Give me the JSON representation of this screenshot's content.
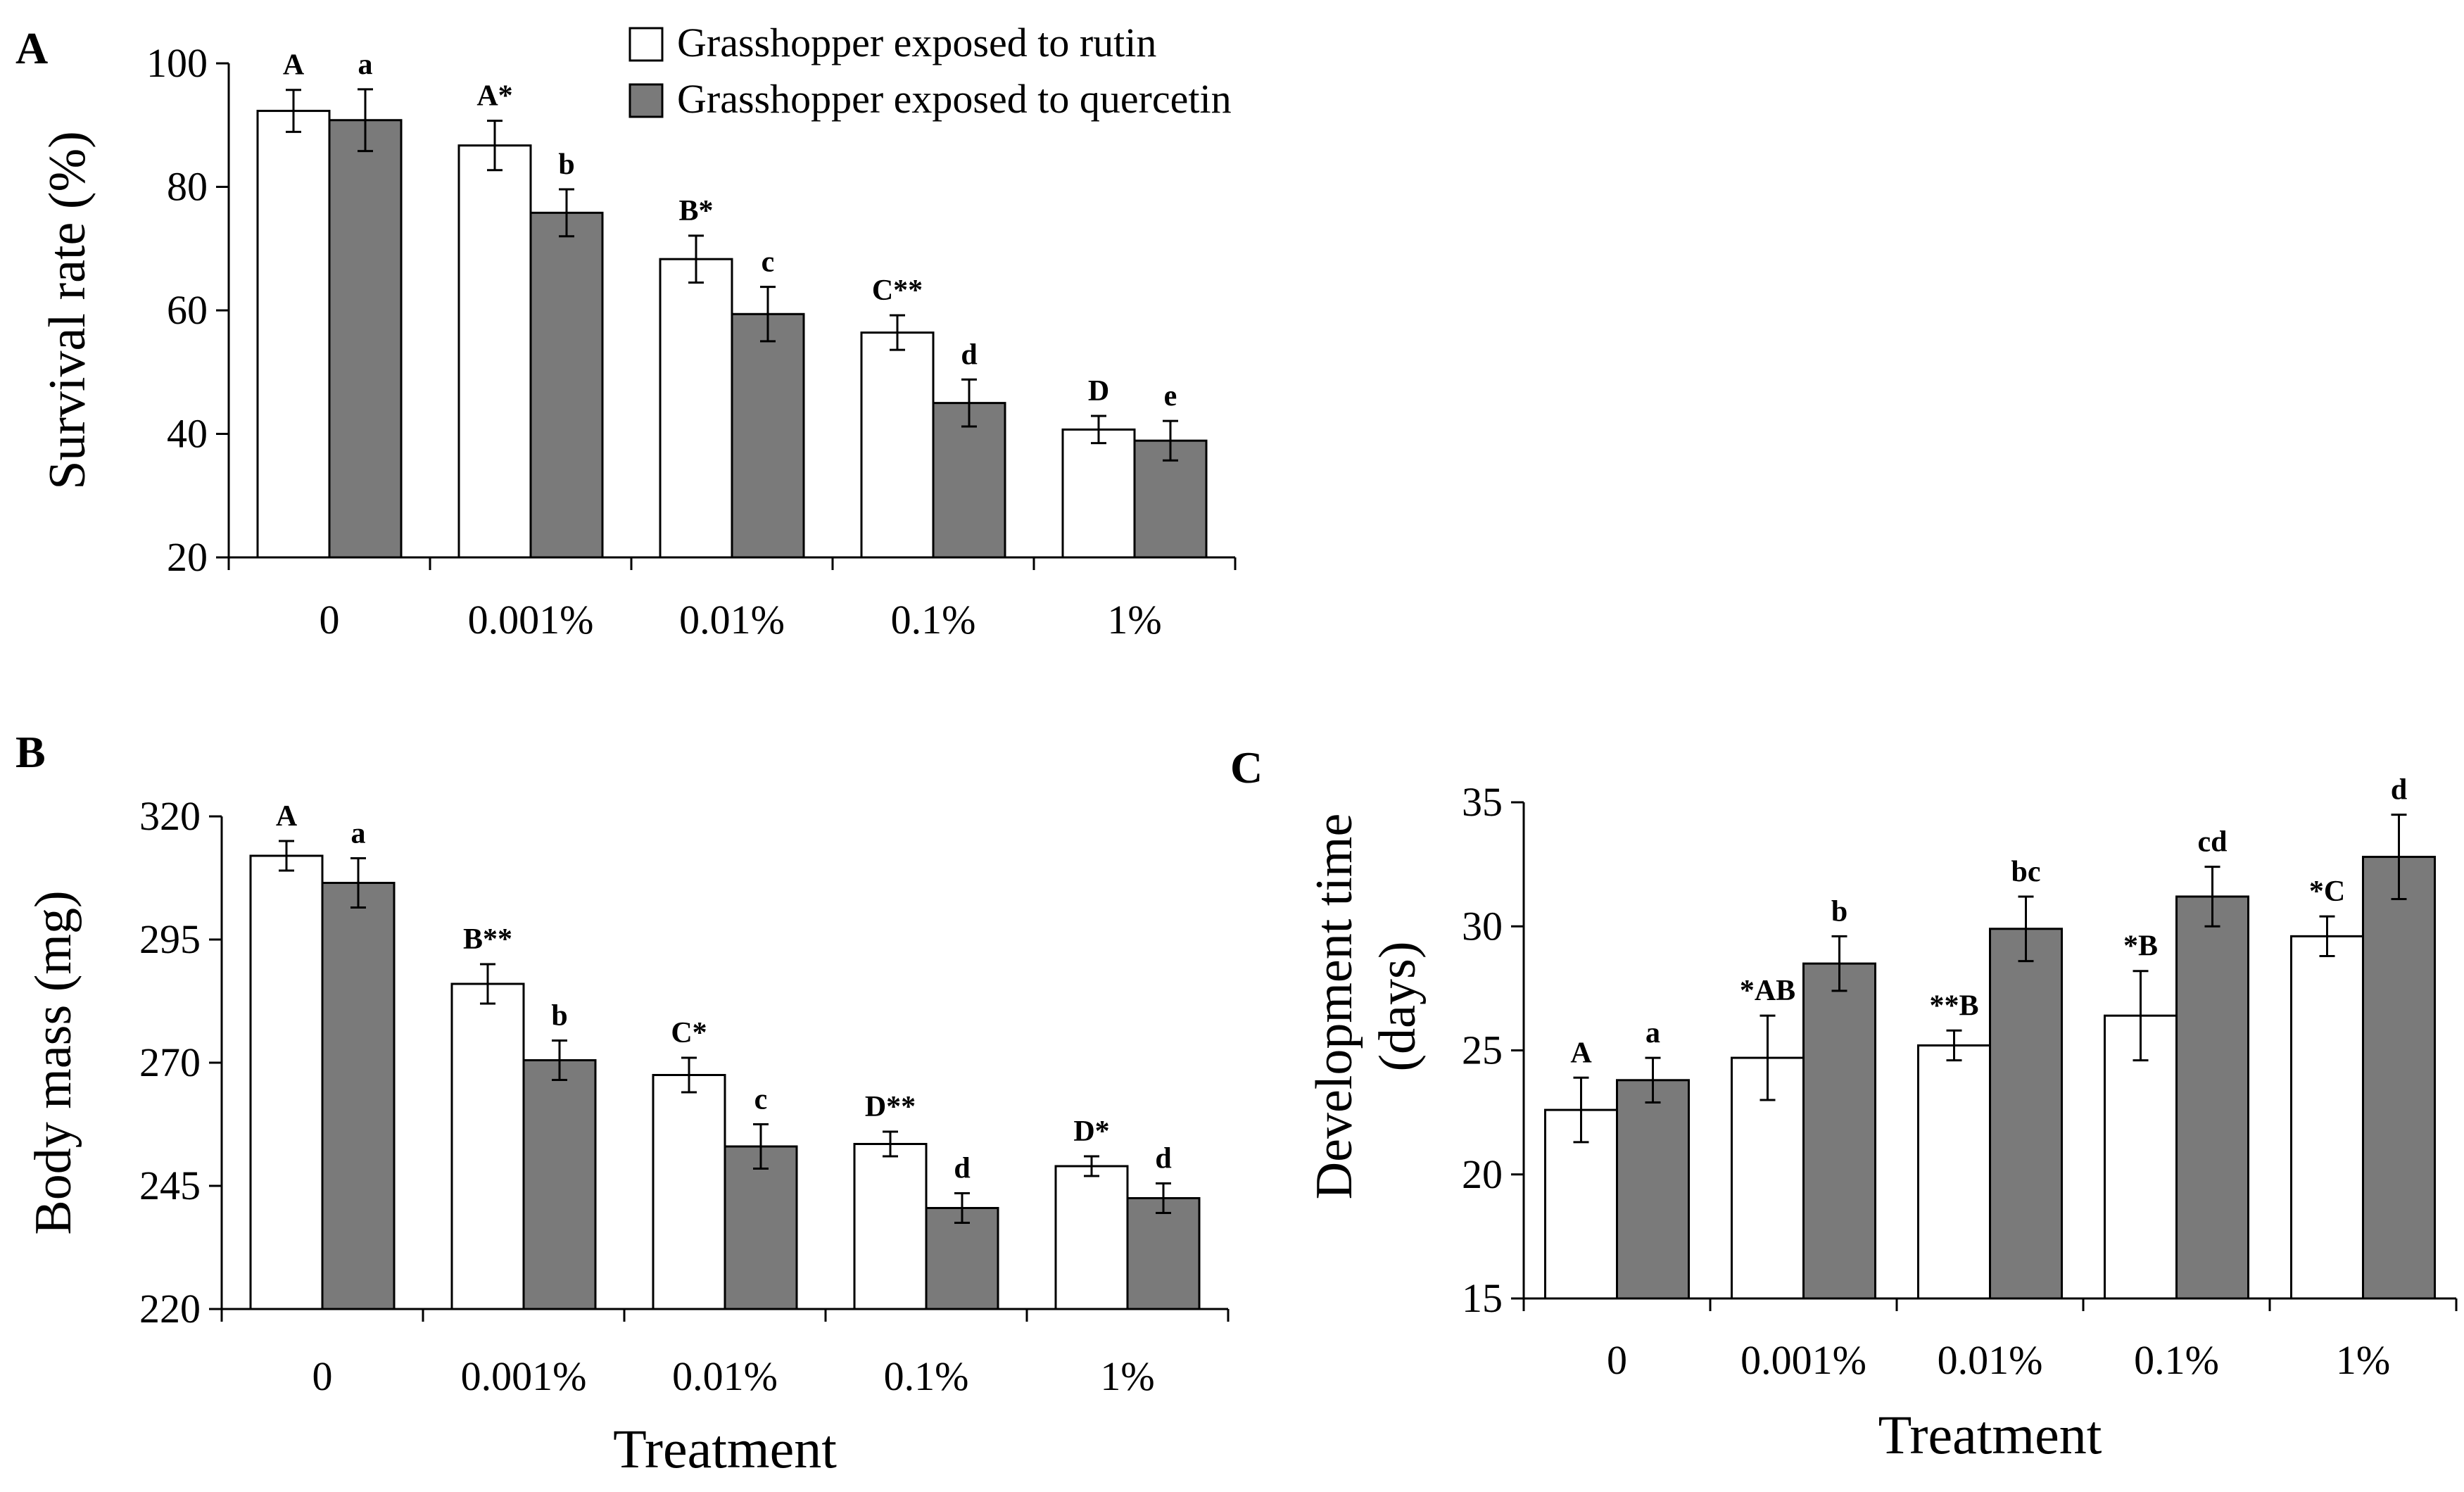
{
  "figure": {
    "legend": [
      {
        "label": "Grasshopper exposed to rutin",
        "color": "#ffffff"
      },
      {
        "label": "Grasshopper exposed to quercetin",
        "color": "#7a7a7a"
      }
    ],
    "colors": {
      "rutin": "#ffffff",
      "quercetin": "#7a7a7a",
      "axis": "#000000"
    }
  },
  "chart_data": [
    {
      "panel": "A",
      "type": "bar",
      "ylabel": "Survival rate (%)",
      "xlabel": "",
      "ylim": [
        20,
        100
      ],
      "yticks": [
        20,
        40,
        60,
        80,
        100
      ],
      "categories": [
        "0",
        "0.001%",
        "0.01%",
        "0.1%",
        "1%"
      ],
      "series": [
        {
          "name": "Grasshopper exposed to rutin",
          "values": [
            92.3,
            86.7,
            68.3,
            56.4,
            40.7
          ],
          "errors": [
            3.4,
            4.0,
            3.8,
            2.8,
            2.2
          ],
          "labels": [
            "A",
            "A*",
            "B*",
            "C**",
            "D"
          ]
        },
        {
          "name": "Grasshopper exposed to quercetin",
          "values": [
            90.8,
            75.8,
            59.4,
            45.0,
            38.9
          ],
          "errors": [
            5.0,
            3.8,
            4.4,
            3.8,
            3.2
          ],
          "labels": [
            "a",
            "b",
            "c",
            "d",
            "e"
          ]
        }
      ]
    },
    {
      "panel": "B",
      "type": "bar",
      "ylabel": "Body mass (mg)",
      "xlabel": "Treatment",
      "ylim": [
        220,
        320
      ],
      "yticks": [
        220,
        245,
        270,
        295,
        320
      ],
      "categories": [
        "0",
        "0.001%",
        "0.01%",
        "0.1%",
        "1%"
      ],
      "series": [
        {
          "name": "Grasshopper exposed to rutin",
          "values": [
            312.0,
            286.0,
            267.5,
            253.5,
            249.0
          ],
          "errors": [
            3.0,
            4.0,
            3.5,
            2.5,
            2.0
          ],
          "labels": [
            "A",
            "B**",
            "C*",
            "D**",
            "D*"
          ]
        },
        {
          "name": "Grasshopper exposed to quercetin",
          "values": [
            306.5,
            270.5,
            253.0,
            240.5,
            242.5
          ],
          "errors": [
            5.0,
            4.0,
            4.5,
            3.0,
            3.0
          ],
          "labels": [
            "a",
            "b",
            "c",
            "d",
            "d"
          ]
        }
      ]
    },
    {
      "panel": "C",
      "type": "bar",
      "ylabel": "Development time (days)",
      "xlabel": "Treatment",
      "ylim": [
        15,
        35
      ],
      "yticks": [
        15,
        20,
        25,
        30,
        35
      ],
      "categories": [
        "0",
        "0.001%",
        "0.01%",
        "0.1%",
        "1%"
      ],
      "series": [
        {
          "name": "Grasshopper exposed to rutin",
          "values": [
            22.6,
            24.7,
            25.2,
            26.4,
            29.6
          ],
          "errors": [
            1.3,
            1.7,
            0.6,
            1.8,
            0.8
          ],
          "labels": [
            "A",
            "*AB",
            "**B",
            "*B",
            "*C"
          ]
        },
        {
          "name": "Grasshopper exposed to quercetin",
          "values": [
            23.8,
            28.5,
            29.9,
            31.2,
            32.8
          ],
          "errors": [
            0.9,
            1.1,
            1.3,
            1.2,
            1.7
          ],
          "labels": [
            "a",
            "b",
            "bc",
            "cd",
            "d"
          ]
        }
      ]
    }
  ]
}
